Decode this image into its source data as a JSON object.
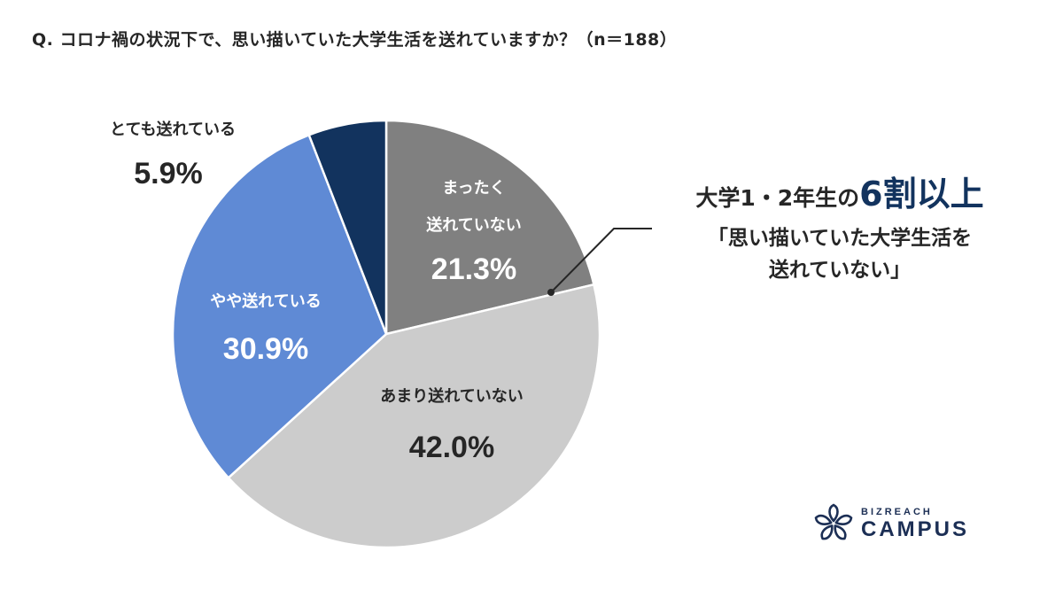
{
  "title": "Q. コロナ禍の状況下で、思い描いていた大学生活を送れていますか？（n＝188）",
  "chart_data": {
    "type": "pie",
    "title": "Q. コロナ禍の状況下で、思い描いていた大学生活を送れていますか？（n＝188）",
    "n": 188,
    "start_angle": "12 o'clock, clockwise",
    "categories": [
      "まったく送れていない",
      "あまり送れていない",
      "やや送れている",
      "とても送れている"
    ],
    "values": [
      21.3,
      42.0,
      30.9,
      5.9
    ],
    "colors": [
      "#808080",
      "#cccccc",
      "#5f8ad5",
      "#12335e"
    ],
    "labels": [
      {
        "name_lines": [
          "まったく",
          "送れていない"
        ],
        "pct": "21.3%"
      },
      {
        "name_lines": [
          "あまり送れていない"
        ],
        "pct": "42.0%"
      },
      {
        "name_lines": [
          "やや送れている"
        ],
        "pct": "30.9%"
      },
      {
        "name_lines": [
          "とても送れている"
        ],
        "pct": "5.9%"
      }
    ],
    "legend": "none (labels on slices)"
  },
  "callout": {
    "head_prefix": "大学1・2年生の",
    "head_emphasis": "6割以上",
    "quote_line1": "「思い描いていた大学生活を",
    "quote_line2": "送れていない」",
    "accent_color": "#12335e"
  },
  "logo": {
    "small": "BIZREACH",
    "large": "CAMPUS",
    "color": "#1c2f55"
  }
}
